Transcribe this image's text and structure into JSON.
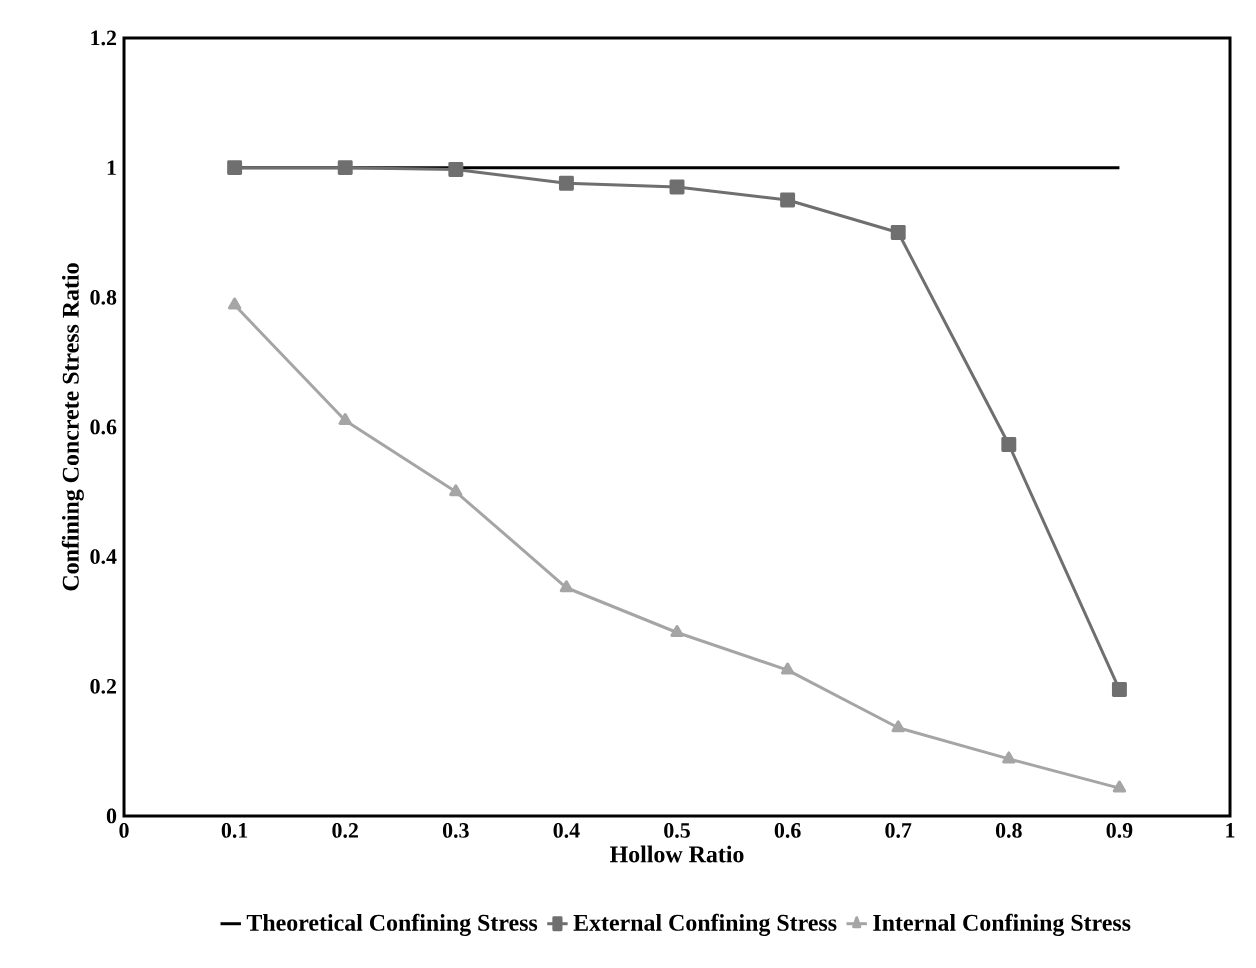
{
  "chart_data": {
    "type": "line",
    "xlabel": "Hollow Ratio",
    "ylabel": "Confining Concrete Stress Ratio",
    "x": [
      0.1,
      0.2,
      0.3,
      0.4,
      0.5,
      0.6,
      0.7,
      0.8,
      0.9
    ],
    "series": [
      {
        "name": "Theoretical Confining Stress",
        "color": "#000000",
        "marker": "none",
        "values": [
          1,
          1,
          1,
          1,
          1,
          1,
          1,
          1,
          1
        ]
      },
      {
        "name": "External Confining Stress",
        "color": "#6f6f6f",
        "marker": "square",
        "values": [
          1.0,
          1.0,
          0.997,
          0.976,
          0.97,
          0.95,
          0.9,
          0.573,
          0.195
        ]
      },
      {
        "name": "Internal Confining Stress",
        "color": "#a5a5a5",
        "marker": "triangle",
        "values": [
          0.788,
          0.61,
          0.5,
          0.352,
          0.283,
          0.225,
          0.136,
          0.088,
          0.043
        ]
      }
    ],
    "xlim": [
      0,
      1
    ],
    "ylim": [
      0,
      1.2
    ],
    "xticks": [
      0,
      0.1,
      0.2,
      0.3,
      0.4,
      0.5,
      0.6,
      0.7,
      0.8,
      0.9,
      1
    ],
    "yticks": [
      0,
      0.2,
      0.4,
      0.6,
      0.8,
      1,
      1.2
    ],
    "grid": false,
    "legend": "bottom"
  }
}
